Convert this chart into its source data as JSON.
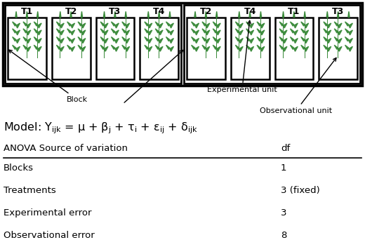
{
  "bg_color": "#ffffff",
  "block_labels": [
    "T1",
    "T2",
    "T3",
    "T4",
    "T2",
    "T4",
    "T1",
    "T3"
  ],
  "anova_rows": [
    [
      "Blocks",
      "1"
    ],
    [
      "Treatments",
      "3 (fixed)"
    ],
    [
      "Experimental error",
      "3"
    ],
    [
      "Observational error",
      "8"
    ]
  ],
  "plant_color": "#3a8a3a",
  "plant_color_light": "#5aaa5a"
}
